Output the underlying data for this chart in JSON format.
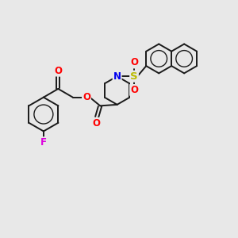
{
  "bg_color": "#e8e8e8",
  "fig_size": [
    3.0,
    3.0
  ],
  "dpi": 100,
  "bond_color": "#1a1a1a",
  "bond_lw": 1.4,
  "atom_colors": {
    "O": "#ff0000",
    "N": "#0000ee",
    "F": "#dd00dd",
    "S": "#bbbb00",
    "C": "#1a1a1a"
  },
  "font_size": 8.5
}
